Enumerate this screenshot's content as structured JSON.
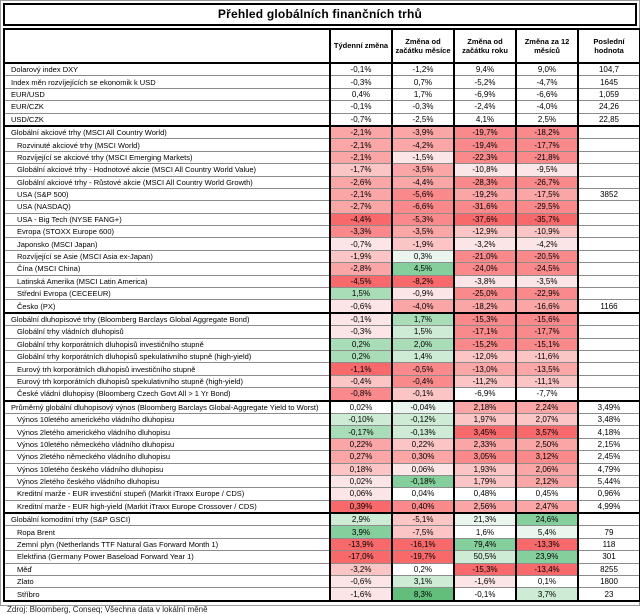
{
  "title": "Přehled globálních finančních trhů",
  "columns": [
    "Týdenní změna",
    "Změna od začátku měsíce",
    "Změna od začátku roku",
    "Změna za 12 měsíců",
    "Poslední hodnota"
  ],
  "palette": {
    "r5": "#F8696B",
    "r4": "#F9898B",
    "r3": "#FAA5A6",
    "r2": "#FBC5C6",
    "r1": "#FCE5E6",
    "w": "#FFFFFF",
    "g1": "#EAF6ED",
    "g2": "#CDEBD5",
    "g3": "#A9DDB8",
    "g4": "#84CF9B",
    "g5": "#63BE7B"
  },
  "rows": [
    {
      "label": "Dolarový index DXY",
      "indent": 0,
      "section": false,
      "cells": [
        {
          "v": "-0,1%",
          "c": "w"
        },
        {
          "v": "-1,2%",
          "c": "w"
        },
        {
          "v": "9,4%",
          "c": "w"
        },
        {
          "v": "9,0%",
          "c": "w"
        }
      ],
      "last": "104,7"
    },
    {
      "label": "Index měn rozvíjejících se ekonomik k USD",
      "indent": 0,
      "section": false,
      "cells": [
        {
          "v": "-0,3%",
          "c": "w"
        },
        {
          "v": "0,7%",
          "c": "w"
        },
        {
          "v": "-5,2%",
          "c": "w"
        },
        {
          "v": "-4,7%",
          "c": "w"
        }
      ],
      "last": "1645"
    },
    {
      "label": "EUR/USD",
      "indent": 0,
      "section": false,
      "cells": [
        {
          "v": "0,4%",
          "c": "w"
        },
        {
          "v": "1,7%",
          "c": "w"
        },
        {
          "v": "-6,9%",
          "c": "w"
        },
        {
          "v": "-6,6%",
          "c": "w"
        }
      ],
      "last": "1,059"
    },
    {
      "label": "EUR/CZK",
      "indent": 0,
      "section": false,
      "cells": [
        {
          "v": "-0,1%",
          "c": "w"
        },
        {
          "v": "-0,3%",
          "c": "w"
        },
        {
          "v": "-2,4%",
          "c": "w"
        },
        {
          "v": "-4,0%",
          "c": "w"
        }
      ],
      "last": "24,26"
    },
    {
      "label": "USD/CZK",
      "indent": 0,
      "section": false,
      "cells": [
        {
          "v": "-0,7%",
          "c": "w"
        },
        {
          "v": "-2,5%",
          "c": "w"
        },
        {
          "v": "4,1%",
          "c": "w"
        },
        {
          "v": "2,5%",
          "c": "w"
        }
      ],
      "last": "22,85"
    },
    {
      "label": "Globální akciové trhy (MSCI All Country World)",
      "indent": 0,
      "section": true,
      "cells": [
        {
          "v": "-2,1%",
          "c": "r3"
        },
        {
          "v": "-3,9%",
          "c": "r3"
        },
        {
          "v": "-19,7%",
          "c": "r4"
        },
        {
          "v": "-18,2%",
          "c": "r4"
        }
      ],
      "last": ""
    },
    {
      "label": "Rozvinuté akciové trhy (MSCI World)",
      "indent": 1,
      "section": false,
      "cells": [
        {
          "v": "-2,1%",
          "c": "r3"
        },
        {
          "v": "-4,2%",
          "c": "r3"
        },
        {
          "v": "-19,4%",
          "c": "r4"
        },
        {
          "v": "-17,7%",
          "c": "r4"
        }
      ],
      "last": ""
    },
    {
      "label": "Rozvíjející se akciové trhy (MSCI Emerging Markets)",
      "indent": 1,
      "section": false,
      "cells": [
        {
          "v": "-2,1%",
          "c": "r3"
        },
        {
          "v": "-1,5%",
          "c": "r1"
        },
        {
          "v": "-22,3%",
          "c": "r4"
        },
        {
          "v": "-21,8%",
          "c": "r4"
        }
      ],
      "last": ""
    },
    {
      "label": "Globální akciové trhy - Hodnotové akcie (MSCI All Country World Value)",
      "indent": 1,
      "section": false,
      "cells": [
        {
          "v": "-1,7%",
          "c": "r2"
        },
        {
          "v": "-3,5%",
          "c": "r3"
        },
        {
          "v": "-10,8%",
          "c": "r1"
        },
        {
          "v": "-9,5%",
          "c": "r1"
        }
      ],
      "last": ""
    },
    {
      "label": "Globální akciové trhy - Růstové akcie (MSCI All Country World Growth)",
      "indent": 1,
      "section": false,
      "cells": [
        {
          "v": "-2,6%",
          "c": "r3"
        },
        {
          "v": "-4,4%",
          "c": "r3"
        },
        {
          "v": "-28,3%",
          "c": "r4"
        },
        {
          "v": "-26,7%",
          "c": "r4"
        }
      ],
      "last": ""
    },
    {
      "label": "USA (S&P 500)",
      "indent": 1,
      "section": false,
      "cells": [
        {
          "v": "-2,1%",
          "c": "r3"
        },
        {
          "v": "-5,6%",
          "c": "r4"
        },
        {
          "v": "-19,2%",
          "c": "r3"
        },
        {
          "v": "-17,5%",
          "c": "r3"
        }
      ],
      "last": "3852"
    },
    {
      "label": "USA (NASDAQ)",
      "indent": 1,
      "section": false,
      "cells": [
        {
          "v": "-2,7%",
          "c": "r3"
        },
        {
          "v": "-6,6%",
          "c": "r4"
        },
        {
          "v": "-31,6%",
          "c": "r4"
        },
        {
          "v": "-29,5%",
          "c": "r4"
        }
      ],
      "last": ""
    },
    {
      "label": "USA - Big Tech (NYSE FANG+)",
      "indent": 1,
      "section": false,
      "cells": [
        {
          "v": "-4,4%",
          "c": "r5"
        },
        {
          "v": "-5,3%",
          "c": "r4"
        },
        {
          "v": "-37,6%",
          "c": "r5"
        },
        {
          "v": "-35,7%",
          "c": "r5"
        }
      ],
      "last": ""
    },
    {
      "label": "Evropa (STOXX Europe 600)",
      "indent": 1,
      "section": false,
      "cells": [
        {
          "v": "-3,3%",
          "c": "r4"
        },
        {
          "v": "-3,5%",
          "c": "r3"
        },
        {
          "v": "-12,9%",
          "c": "r2"
        },
        {
          "v": "-10,9%",
          "c": "r2"
        }
      ],
      "last": ""
    },
    {
      "label": "Japonsko (MSCI Japan)",
      "indent": 1,
      "section": false,
      "cells": [
        {
          "v": "-0,7%",
          "c": "r1"
        },
        {
          "v": "-1,9%",
          "c": "r2"
        },
        {
          "v": "-3,2%",
          "c": "r1"
        },
        {
          "v": "-4,2%",
          "c": "r1"
        }
      ],
      "last": ""
    },
    {
      "label": "Rozvíjející se Asie (MSCI Asia ex-Japan)",
      "indent": 1,
      "section": false,
      "cells": [
        {
          "v": "-1,9%",
          "c": "r2"
        },
        {
          "v": "0,3%",
          "c": "g1"
        },
        {
          "v": "-21,0%",
          "c": "r4"
        },
        {
          "v": "-20,5%",
          "c": "r4"
        }
      ],
      "last": ""
    },
    {
      "label": "Čína (MSCI China)",
      "indent": 1,
      "section": false,
      "cells": [
        {
          "v": "-2,8%",
          "c": "r3"
        },
        {
          "v": "4,5%",
          "c": "g4"
        },
        {
          "v": "-24,0%",
          "c": "r4"
        },
        {
          "v": "-24,5%",
          "c": "r4"
        }
      ],
      "last": ""
    },
    {
      "label": "Latinská Amerika (MSCI Latin America)",
      "indent": 1,
      "section": false,
      "cells": [
        {
          "v": "-4,5%",
          "c": "r5"
        },
        {
          "v": "-8,2%",
          "c": "r5"
        },
        {
          "v": "-3,8%",
          "c": "r1"
        },
        {
          "v": "-3,5%",
          "c": "r1"
        }
      ],
      "last": ""
    },
    {
      "label": "Střední Evropa (CECEEUR)",
      "indent": 1,
      "section": false,
      "cells": [
        {
          "v": "1,5%",
          "c": "g3"
        },
        {
          "v": "-0,9%",
          "c": "r1"
        },
        {
          "v": "-25,0%",
          "c": "r4"
        },
        {
          "v": "-22,9%",
          "c": "r4"
        }
      ],
      "last": ""
    },
    {
      "label": "Česko (PX)",
      "indent": 1,
      "section": false,
      "cells": [
        {
          "v": "-0,6%",
          "c": "r1"
        },
        {
          "v": "-4,0%",
          "c": "r3"
        },
        {
          "v": "-18,2%",
          "c": "r3"
        },
        {
          "v": "-16,6%",
          "c": "r3"
        }
      ],
      "last": "1166"
    },
    {
      "label": "Globální dluhopisové trhy (Bloomberg Barclays Global Aggregate Bond)",
      "indent": 0,
      "section": true,
      "cells": [
        {
          "v": "-0,1%",
          "c": "r1"
        },
        {
          "v": "1,7%",
          "c": "g3"
        },
        {
          "v": "-15,3%",
          "c": "r4"
        },
        {
          "v": "-15,6%",
          "c": "r4"
        }
      ],
      "last": ""
    },
    {
      "label": "Globální trhy vládních dluhopisů",
      "indent": 1,
      "section": false,
      "cells": [
        {
          "v": "-0,3%",
          "c": "r1"
        },
        {
          "v": "1,5%",
          "c": "g2"
        },
        {
          "v": "-17,1%",
          "c": "r4"
        },
        {
          "v": "-17,7%",
          "c": "r4"
        }
      ],
      "last": ""
    },
    {
      "label": "Globální trhy korporátních dluhopisů investičního stupně",
      "indent": 1,
      "section": false,
      "cells": [
        {
          "v": "0,2%",
          "c": "g3"
        },
        {
          "v": "2,0%",
          "c": "g3"
        },
        {
          "v": "-15,2%",
          "c": "r4"
        },
        {
          "v": "-15,1%",
          "c": "r4"
        }
      ],
      "last": ""
    },
    {
      "label": "Globální trhy korporátních dluhopisů spekulativního stupně (high-yield)",
      "indent": 1,
      "section": false,
      "cells": [
        {
          "v": "0,2%",
          "c": "g3"
        },
        {
          "v": "1,4%",
          "c": "g2"
        },
        {
          "v": "-12,0%",
          "c": "r2"
        },
        {
          "v": "-11,6%",
          "c": "r2"
        }
      ],
      "last": ""
    },
    {
      "label": "Eurový trh korporátních dluhopisů investičního stupně",
      "indent": 1,
      "section": false,
      "cells": [
        {
          "v": "-1,1%",
          "c": "r5"
        },
        {
          "v": "-0,5%",
          "c": "r4"
        },
        {
          "v": "-13,0%",
          "c": "r3"
        },
        {
          "v": "-13,5%",
          "c": "r3"
        }
      ],
      "last": ""
    },
    {
      "label": "Eurový trh korporátních dluhopisů spekulativního stupně (high-yield)",
      "indent": 1,
      "section": false,
      "cells": [
        {
          "v": "-0,4%",
          "c": "r2"
        },
        {
          "v": "-0,4%",
          "c": "r4"
        },
        {
          "v": "-11,2%",
          "c": "r2"
        },
        {
          "v": "-11,1%",
          "c": "r2"
        }
      ],
      "last": ""
    },
    {
      "label": "České vládní dluhopisy (Bloomberg Czech Govt All > 1 Yr Bond)",
      "indent": 1,
      "section": false,
      "cells": [
        {
          "v": "-0,8%",
          "c": "r4"
        },
        {
          "v": "-0,1%",
          "c": "r2"
        },
        {
          "v": "-6,9%",
          "c": "w"
        },
        {
          "v": "-7,7%",
          "c": "w"
        }
      ],
      "last": ""
    },
    {
      "label": "Průměrný globální dluhopisový výnos (Bloomberg Barclays Global-Aggregate Yield to Worst)",
      "indent": 0,
      "section": true,
      "cells": [
        {
          "v": "0,02%",
          "c": "w"
        },
        {
          "v": "-0,04%",
          "c": "g1"
        },
        {
          "v": "2,18%",
          "c": "r3"
        },
        {
          "v": "2,24%",
          "c": "r3"
        }
      ],
      "last": "3,49%"
    },
    {
      "label": "Výnos 10letého amerického vládního dluhopisu",
      "indent": 1,
      "section": false,
      "cells": [
        {
          "v": "-0,10%",
          "c": "g2"
        },
        {
          "v": "-0,12%",
          "c": "g2"
        },
        {
          "v": "1,97%",
          "c": "r2"
        },
        {
          "v": "2,07%",
          "c": "r2"
        }
      ],
      "last": "3,48%"
    },
    {
      "label": "Výnos 2letého amerického vládního dluhopisu",
      "indent": 1,
      "section": false,
      "cells": [
        {
          "v": "-0,17%",
          "c": "g3"
        },
        {
          "v": "-0,13%",
          "c": "g2"
        },
        {
          "v": "3,45%",
          "c": "r5"
        },
        {
          "v": "3,57%",
          "c": "r5"
        }
      ],
      "last": "4,18%"
    },
    {
      "label": "Výnos 10letého německého vládního dluhopisu",
      "indent": 1,
      "section": false,
      "cells": [
        {
          "v": "0,22%",
          "c": "r3"
        },
        {
          "v": "0,22%",
          "c": "r2"
        },
        {
          "v": "2,33%",
          "c": "r3"
        },
        {
          "v": "2,50%",
          "c": "r3"
        }
      ],
      "last": "2,15%"
    },
    {
      "label": "Výnos 2letého německého vládního dluhopisu",
      "indent": 1,
      "section": false,
      "cells": [
        {
          "v": "0,27%",
          "c": "r3"
        },
        {
          "v": "0,30%",
          "c": "r3"
        },
        {
          "v": "3,05%",
          "c": "r4"
        },
        {
          "v": "3,12%",
          "c": "r4"
        }
      ],
      "last": "2,45%"
    },
    {
      "label": "Výnos 10letého českého vládního dluhopisu",
      "indent": 1,
      "section": false,
      "cells": [
        {
          "v": "0,18%",
          "c": "r2"
        },
        {
          "v": "0,06%",
          "c": "r1"
        },
        {
          "v": "1,93%",
          "c": "r2"
        },
        {
          "v": "2,06%",
          "c": "r3"
        }
      ],
      "last": "4,79%"
    },
    {
      "label": "Výnos 2letého českého vládního dluhopisu",
      "indent": 1,
      "section": false,
      "cells": [
        {
          "v": "0,02%",
          "c": "r1"
        },
        {
          "v": "-0,18%",
          "c": "g4"
        },
        {
          "v": "1,79%",
          "c": "r2"
        },
        {
          "v": "2,12%",
          "c": "r3"
        }
      ],
      "last": "5,44%"
    },
    {
      "label": "Kreditní marže - EUR investiční stupeň (Markit iTraxx Europe / CDS)",
      "indent": 1,
      "section": false,
      "cells": [
        {
          "v": "0,06%",
          "c": "r1"
        },
        {
          "v": "0,04%",
          "c": "w"
        },
        {
          "v": "0,48%",
          "c": "w"
        },
        {
          "v": "0,45%",
          "c": "w"
        }
      ],
      "last": "0,96%"
    },
    {
      "label": "Kreditní marže - EUR high-yield (Markit iTraxx Europe Crossover / CDS)",
      "indent": 1,
      "section": false,
      "cells": [
        {
          "v": "0,39%",
          "c": "r5"
        },
        {
          "v": "0,40%",
          "c": "r4"
        },
        {
          "v": "2,56%",
          "c": "r3"
        },
        {
          "v": "2,47%",
          "c": "r3"
        }
      ],
      "last": "4,99%"
    },
    {
      "label": "Globální komoditní trhy (S&P GSCI)",
      "indent": 0,
      "section": true,
      "cells": [
        {
          "v": "2,9%",
          "c": "g2"
        },
        {
          "v": "-5,1%",
          "c": "r2"
        },
        {
          "v": "21,3%",
          "c": "g1"
        },
        {
          "v": "24,6%",
          "c": "g4"
        }
      ],
      "last": ""
    },
    {
      "label": "Ropa Brent",
      "indent": 1,
      "section": false,
      "cells": [
        {
          "v": "3,9%",
          "c": "g4"
        },
        {
          "v": "-7,5%",
          "c": "r2"
        },
        {
          "v": "1,6%",
          "c": "w"
        },
        {
          "v": "5,4%",
          "c": "g1"
        }
      ],
      "last": "79"
    },
    {
      "label": "Zemní plyn (Netherlands TTF Natural Gas Forward Month 1)",
      "indent": 1,
      "section": false,
      "cells": [
        {
          "v": "-13,9%",
          "c": "r5"
        },
        {
          "v": "-16,1%",
          "c": "r5"
        },
        {
          "v": "79,4%",
          "c": "g4"
        },
        {
          "v": "-13,3%",
          "c": "r5"
        }
      ],
      "last": "118"
    },
    {
      "label": "Elektřina (Germany Power Baseload Forward Year 1)",
      "indent": 1,
      "section": false,
      "cells": [
        {
          "v": "-17,0%",
          "c": "r5"
        },
        {
          "v": "-19,7%",
          "c": "r5"
        },
        {
          "v": "50,5%",
          "c": "g2"
        },
        {
          "v": "23,9%",
          "c": "g4"
        }
      ],
      "last": "301"
    },
    {
      "label": "Měď",
      "indent": 1,
      "section": false,
      "cells": [
        {
          "v": "-3,2%",
          "c": "r2"
        },
        {
          "v": "0,2%",
          "c": "w"
        },
        {
          "v": "-15,3%",
          "c": "r5"
        },
        {
          "v": "-13,4%",
          "c": "r5"
        }
      ],
      "last": "8255"
    },
    {
      "label": "Zlato",
      "indent": 1,
      "section": false,
      "cells": [
        {
          "v": "-0,6%",
          "c": "r1"
        },
        {
          "v": "3,1%",
          "c": "g2"
        },
        {
          "v": "-1,6%",
          "c": "r1"
        },
        {
          "v": "0,1%",
          "c": "w"
        }
      ],
      "last": "1800"
    },
    {
      "label": "Stříbro",
      "indent": 1,
      "section": false,
      "cells": [
        {
          "v": "-1,6%",
          "c": "r1"
        },
        {
          "v": "8,3%",
          "c": "g5"
        },
        {
          "v": "-0,1%",
          "c": "w"
        },
        {
          "v": "3,7%",
          "c": "g2"
        }
      ],
      "last": "23"
    }
  ],
  "footer": "Zdroj: Bloomberg, Conseq; Všechna data v lokální měně"
}
